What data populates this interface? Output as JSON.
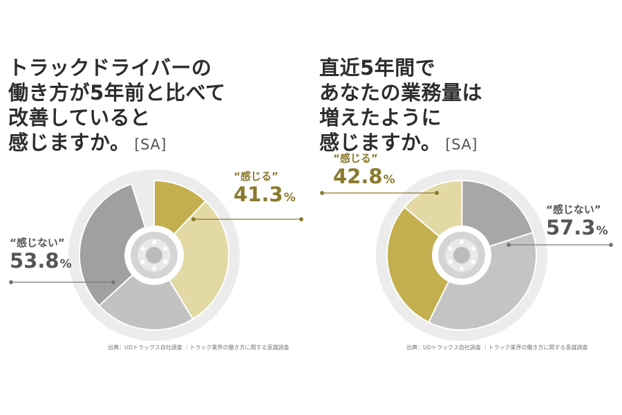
{
  "panels": [
    {
      "question_lines": [
        "トラックドライバーの",
        "働き方が5年前と比べて",
        "改善していると",
        "感じますか。"
      ],
      "answer_type": "[SA]",
      "source": "出典：UDトラックス自社調査 ｜トラック業界の働き方に関する意識調査",
      "labels": {
        "yes_name": "“感じる”",
        "yes_value": "41.3",
        "yes_unit": "%",
        "no_name": "“感じない”",
        "no_value": "53.8",
        "no_unit": "%"
      }
    },
    {
      "question_lines": [
        "直近5年間で",
        "あなたの業務量は",
        "増えたように",
        "感じますか。"
      ],
      "answer_type": "[SA]",
      "source": "出典：UDトラックス自社調査 ｜トラック業界の働き方に関する意識調査",
      "labels": {
        "yes_name": "“感じる”",
        "yes_value": "42.8",
        "yes_unit": "%",
        "no_name": "“感じない”",
        "no_value": "57.3",
        "no_unit": "%"
      }
    }
  ],
  "chart_data": [
    {
      "type": "pie",
      "categories": [
        "“感じる”",
        "“感じない”"
      ],
      "values": [
        41.3,
        53.8
      ],
      "series": [
        {
          "group": "“感じる”",
          "values": [
            12.1,
            29.2
          ],
          "colors": [
            "#c4af4f",
            "#e2d9a4"
          ]
        },
        {
          "group": "“感じない”",
          "values": [
            21.9,
            31.9
          ],
          "colors": [
            "#c2c2c2",
            "#a0a0a0"
          ]
        }
      ]
    },
    {
      "type": "pie",
      "categories": [
        "“感じる”",
        "“感じない”"
      ],
      "values": [
        42.8,
        57.3
      ],
      "series": [
        {
          "group": "“感じない”",
          "values": [
            20.1,
            37.2
          ],
          "colors": [
            "#a7a7a7",
            "#c4c4c4"
          ]
        },
        {
          "group": "“感じる”",
          "values": [
            28.8,
            14.0
          ],
          "colors": [
            "#c4af4f",
            "#e2d9a4"
          ]
        }
      ]
    }
  ],
  "colors": {
    "gold": "#8a7a2e",
    "outer_ring": "#ececec",
    "hub": "#d4d4d4",
    "hub_inner": "#bcbcbc"
  }
}
